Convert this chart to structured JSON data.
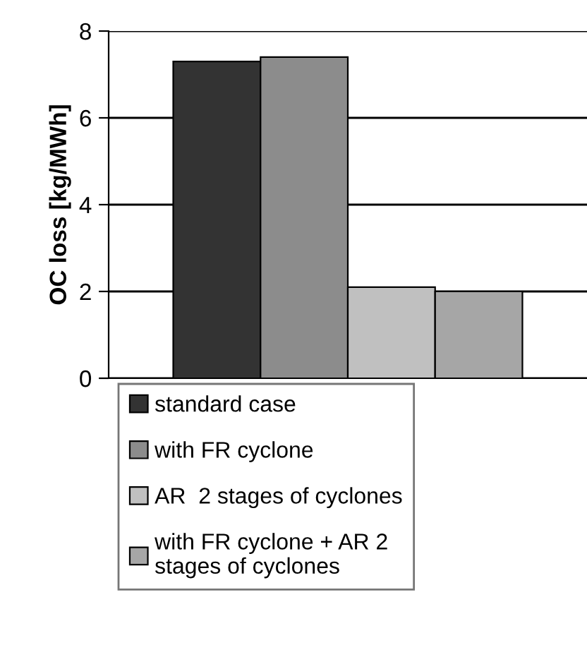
{
  "chart_data": {
    "type": "bar",
    "ylabel": "OC loss [kg/MWh]",
    "categories": [
      null
    ],
    "series": [
      {
        "name": "standard case",
        "color": "#333333",
        "values": [
          7.3
        ]
      },
      {
        "name": "with FR cyclone",
        "color": "#8c8c8c",
        "values": [
          7.4
        ]
      },
      {
        "name": "AR  2 stages of cyclones",
        "color": "#c0c0c0",
        "values": [
          2.1
        ]
      },
      {
        "name": "with FR cyclone + AR 2\nstages of cyclones",
        "color": "#a6a6a6",
        "values": [
          2.0
        ]
      }
    ],
    "ylim": [
      0,
      8
    ],
    "yticks": [
      0,
      2,
      4,
      6,
      8
    ],
    "grid": "y",
    "legend": "bottom"
  }
}
